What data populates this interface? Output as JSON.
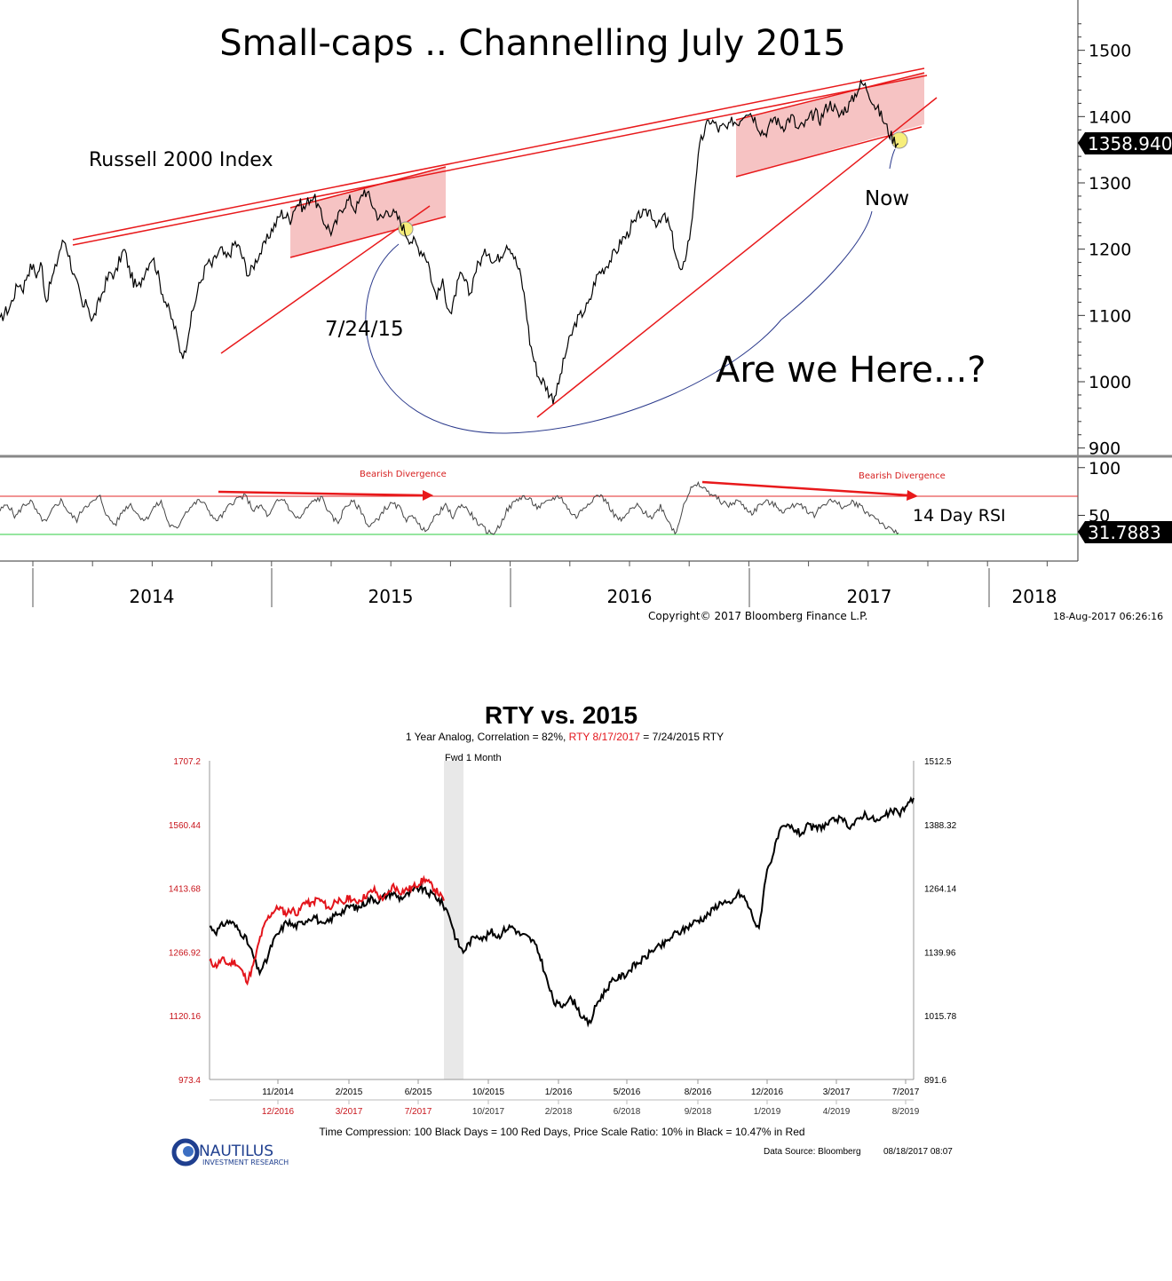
{
  "colors": {
    "price": "#000000",
    "red": "#e8191b",
    "channel_fill": "#f5b8b8",
    "analog_red": "#e3141b",
    "arc": "#2b3a8c",
    "rsi_upper": "#e32a2a",
    "rsi_lower": "#2ecc40",
    "highlight": "#f7ee7a",
    "fwd_band": "#e8e8e8"
  },
  "chart_data": [
    {
      "type": "line",
      "title": "Small-caps .. Channelling July 2015",
      "series_label": "Russell 2000 Index",
      "ylim": [
        880,
        1550
      ],
      "y_ticks": [
        900,
        1000,
        1100,
        1200,
        1300,
        1400,
        1500
      ],
      "x_labels": [
        "2014",
        "2015",
        "2016",
        "2017",
        "2018"
      ],
      "last_value": "1358.940",
      "annotations": {
        "date_label": "7/24/15",
        "now": "Now",
        "question": "Are we Here...?"
      },
      "series": [
        {
          "values": [
            1090,
            1105,
            1110,
            1130,
            1150,
            1140,
            1165,
            1175,
            1160,
            1180,
            1120,
            1150,
            1170,
            1200,
            1215,
            1190,
            1160,
            1140,
            1110,
            1120,
            1090,
            1110,
            1130,
            1150,
            1165,
            1160,
            1185,
            1200,
            1170,
            1150,
            1140,
            1160,
            1175,
            1190,
            1170,
            1140,
            1120,
            1100,
            1080,
            1050,
            1040,
            1080,
            1110,
            1140,
            1160,
            1180,
            1175,
            1190,
            1200,
            1185,
            1195,
            1210,
            1200,
            1180,
            1160,
            1175,
            1190,
            1200,
            1215,
            1230,
            1240,
            1255,
            1250,
            1245,
            1265,
            1270,
            1260,
            1275,
            1280,
            1265,
            1245,
            1235,
            1225,
            1240,
            1260,
            1270,
            1275,
            1260,
            1270,
            1290,
            1280,
            1265,
            1250,
            1245,
            1260,
            1255,
            1250,
            1240,
            1225,
            1215,
            1210,
            1200,
            1195,
            1180,
            1140,
            1130,
            1150,
            1120,
            1100,
            1140,
            1160,
            1150,
            1130,
            1165,
            1180,
            1190,
            1200,
            1180,
            1185,
            1195,
            1210,
            1200,
            1180,
            1160,
            1120,
            1060,
            1030,
            1005,
            1000,
            985,
            975,
            990,
            1020,
            1050,
            1070,
            1090,
            1100,
            1110,
            1120,
            1150,
            1165,
            1170,
            1180,
            1190,
            1200,
            1215,
            1220,
            1235,
            1240,
            1255,
            1250,
            1260,
            1245,
            1235,
            1250,
            1240,
            1215,
            1180,
            1160,
            1200,
            1230,
            1310,
            1360,
            1380,
            1395,
            1390,
            1380,
            1385,
            1380,
            1395,
            1390,
            1400,
            1410,
            1405,
            1395,
            1380,
            1375,
            1385,
            1400,
            1390,
            1385,
            1395,
            1400,
            1380,
            1385,
            1390,
            1400,
            1405,
            1395,
            1410,
            1420,
            1415,
            1400,
            1410,
            1415,
            1425,
            1440,
            1450,
            1445,
            1430,
            1415,
            1405,
            1390,
            1375,
            1365,
            1358.94
          ]
        }
      ]
    },
    {
      "type": "line",
      "title": "14 Day RSI",
      "ylim": [
        0,
        100
      ],
      "y_ticks": [
        50,
        100
      ],
      "reference_lines": [
        70,
        30
      ],
      "last_value": "31.7883",
      "annotations": [
        "Bearish Divergence",
        "Bearish Divergence"
      ],
      "series": [
        {
          "values": [
            55,
            62,
            48,
            60,
            65,
            50,
            42,
            58,
            66,
            52,
            45,
            60,
            63,
            70,
            48,
            40,
            55,
            62,
            50,
            45,
            58,
            64,
            40,
            35,
            52,
            60,
            66,
            58,
            44,
            50,
            62,
            68,
            70,
            55,
            60,
            48,
            64,
            67,
            52,
            46,
            58,
            66,
            68,
            50,
            42,
            60,
            64,
            55,
            38,
            44,
            56,
            62,
            58,
            45,
            50,
            33,
            40,
            52,
            60,
            48,
            62,
            55,
            44,
            36,
            30,
            38,
            55,
            64,
            70,
            66,
            58,
            62,
            68,
            70,
            56,
            48,
            58,
            66,
            72,
            64,
            50,
            44,
            55,
            60,
            52,
            48,
            60,
            45,
            30,
            62,
            78,
            82,
            76,
            70,
            64,
            60,
            66,
            58,
            52,
            62,
            64,
            60,
            54,
            58,
            64,
            56,
            50,
            60,
            66,
            62,
            58,
            64,
            60,
            52,
            48,
            40,
            34,
            31.79
          ]
        }
      ]
    },
    {
      "type": "line",
      "title": "RTY vs. 2015",
      "subtitle_parts": [
        "1 Year Analog, Correlation = 82%, ",
        "RTY 8/17/2017",
        " = 7/24/2015 RTY"
      ],
      "fwd_label": "Fwd 1 Month",
      "ylim_left": [
        973.4,
        1707.2
      ],
      "ylim_right": [
        891.6,
        1512.5
      ],
      "y_ticks_left": [
        "1707.2",
        "1560.44",
        "1413.68",
        "1266.92",
        "1120.16",
        "973.4"
      ],
      "y_ticks_right": [
        "1512.5",
        "1388.32",
        "1264.14",
        "1139.96",
        "1015.78",
        "891.6"
      ],
      "x_ticks_black": [
        "11/2014",
        "2/2015",
        "6/2015",
        "10/2015",
        "1/2016",
        "5/2016",
        "8/2016",
        "12/2016",
        "3/2017",
        "7/2017"
      ],
      "x_ticks_red": [
        "12/2016",
        "3/2017",
        "7/2017",
        "10/2017",
        "2/2018",
        "6/2018",
        "9/2018",
        "1/2019",
        "4/2019",
        "8/2019"
      ],
      "footer": "Time Compression: 100 Black Days = 100 Red Days,  Price Scale Ratio: 10% in Black = 10.47% in Red",
      "data_source": "Data Source: Bloomberg",
      "timestamp": "08/18/2017 08:07",
      "series": [
        {
          "name": "RTY",
          "color": "black",
          "values": [
            1190,
            1180,
            1195,
            1200,
            1185,
            1170,
            1140,
            1100,
            1120,
            1160,
            1180,
            1200,
            1190,
            1195,
            1205,
            1210,
            1190,
            1200,
            1215,
            1220,
            1230,
            1225,
            1235,
            1245,
            1240,
            1250,
            1255,
            1245,
            1250,
            1260,
            1265,
            1255,
            1250,
            1235,
            1215,
            1165,
            1140,
            1160,
            1175,
            1165,
            1180,
            1170,
            1185,
            1190,
            1175,
            1170,
            1160,
            1130,
            1080,
            1040,
            1035,
            1050,
            1040,
            1010,
            1000,
            1040,
            1060,
            1080,
            1090,
            1095,
            1110,
            1120,
            1130,
            1145,
            1150,
            1160,
            1175,
            1180,
            1190,
            1200,
            1205,
            1215,
            1230,
            1240,
            1230,
            1255,
            1245,
            1215,
            1180,
            1290,
            1330,
            1375,
            1385,
            1380,
            1370,
            1385,
            1380,
            1385,
            1390,
            1400,
            1395,
            1385,
            1395,
            1410,
            1400,
            1395,
            1405,
            1415,
            1410,
            1425,
            1440
          ]
        },
        {
          "name": "RTY 8/17/2017",
          "color": "red",
          "values": [
            1245,
            1235,
            1250,
            1238,
            1245,
            1225,
            1200,
            1240,
            1300,
            1340,
            1360,
            1370,
            1355,
            1365,
            1355,
            1385,
            1375,
            1390,
            1380,
            1365,
            1390,
            1375,
            1395,
            1380,
            1390,
            1400,
            1410,
            1390,
            1395,
            1420,
            1405,
            1410,
            1415,
            1425,
            1435,
            1420,
            1405,
            1385
          ]
        }
      ]
    }
  ],
  "copyright": "Copyright© 2017 Bloomberg Finance L.P.",
  "timestamp_top": "18-Aug-2017 06:26:16",
  "logo": {
    "name": "NAUTILUS",
    "sub": "INVESTMENT RESEARCH"
  }
}
